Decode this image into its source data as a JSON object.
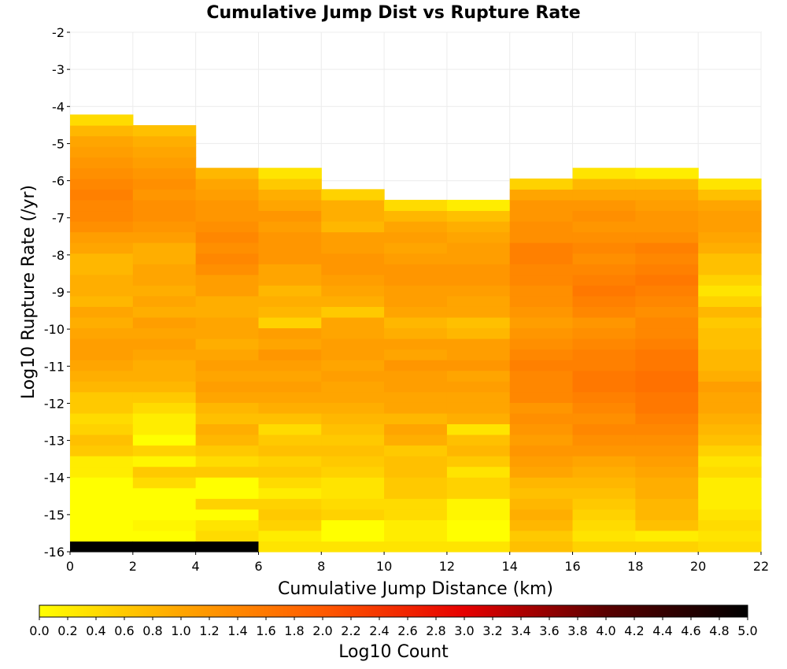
{
  "chart_data": {
    "type": "heatmap",
    "title": "Cumulative Jump Dist vs Rupture Rate",
    "xlabel": "Cumulative Jump Distance (km)",
    "ylabel": "Log10 Rupture Rate (/yr)",
    "xlim": [
      0,
      22
    ],
    "ylim": [
      -16,
      -2
    ],
    "x_ticks": [
      "0",
      "2",
      "4",
      "6",
      "8",
      "10",
      "12",
      "14",
      "16",
      "18",
      "20",
      "22"
    ],
    "y_ticks": [
      "-2",
      "-3",
      "-4",
      "-5",
      "-6",
      "-7",
      "-8",
      "-9",
      "-10",
      "-11",
      "-12",
      "-13",
      "-14",
      "-15",
      "-16"
    ],
    "x_bin_edges": [
      0,
      2,
      4,
      6,
      8,
      10,
      12,
      14,
      16,
      18,
      20,
      22
    ],
    "y_bin_width": 0.2874,
    "y_bin_origin": -16,
    "grid": true,
    "colorbar": {
      "label": "Log10 Count",
      "range": [
        0.0,
        5.0
      ],
      "colors": [
        "#ffff00",
        "#ffa500",
        "#ff5a00",
        "#e60000",
        "#5a0000",
        "#000000"
      ],
      "ticks": [
        "0.0",
        "0.2",
        "0.4",
        "0.6",
        "0.8",
        "1.0",
        "1.2",
        "1.4",
        "1.6",
        "1.8",
        "2.0",
        "2.2",
        "2.4",
        "2.6",
        "2.8",
        "3.0",
        "3.2",
        "3.4",
        "3.6",
        "3.8",
        "4.0",
        "4.2",
        "4.4",
        "4.6",
        "4.8",
        "5.0"
      ]
    },
    "columns": [
      {
        "x_range": [
          0,
          2
        ],
        "counts": [
          5.0,
          0.0,
          0.0,
          0.0,
          0.0,
          0.0,
          0.0,
          0.2,
          0.2,
          0.6,
          0.7,
          0.5,
          0.4,
          0.6,
          0.6,
          0.8,
          0.9,
          1.0,
          1.1,
          1.1,
          1.0,
          0.9,
          1.0,
          0.8,
          0.9,
          0.9,
          0.8,
          0.8,
          1.0,
          1.1,
          1.3,
          1.4,
          1.4,
          1.5,
          1.4,
          1.3,
          1.2,
          1.1,
          1.0,
          0.8,
          0.4
        ]
      },
      {
        "x_range": [
          2,
          4
        ],
        "counts": [
          5.0,
          0.0,
          0.1,
          0.0,
          0.0,
          0.0,
          0.4,
          0.6,
          0.1,
          0.5,
          0.0,
          0.2,
          0.2,
          0.4,
          0.6,
          0.8,
          0.9,
          0.9,
          1.0,
          1.1,
          1.0,
          1.1,
          0.9,
          1.0,
          0.9,
          1.0,
          1.0,
          0.9,
          0.9,
          1.1,
          1.2,
          1.3,
          1.3,
          1.2,
          1.3,
          1.2,
          1.1,
          1.0,
          0.9,
          0.7
        ]
      },
      {
        "x_range": [
          4,
          6
        ],
        "counts": [
          5.0,
          0.4,
          0.3,
          0.0,
          0.5,
          0.0,
          0.0,
          0.6,
          0.4,
          0.6,
          0.8,
          0.9,
          0.7,
          0.8,
          1.0,
          1.1,
          1.0,
          1.1,
          1.0,
          0.9,
          1.0,
          1.0,
          0.9,
          0.9,
          1.1,
          1.1,
          1.3,
          1.4,
          1.3,
          1.4,
          1.3,
          1.2,
          1.2,
          1.1,
          1.0,
          0.8
        ]
      },
      {
        "x_range": [
          6,
          8
        ],
        "counts": [
          0.3,
          0.2,
          0.5,
          0.6,
          0.5,
          0.2,
          0.4,
          0.6,
          0.5,
          0.7,
          0.6,
          0.4,
          0.7,
          0.9,
          1.0,
          1.1,
          1.0,
          1.1,
          1.2,
          1.0,
          1.1,
          0.5,
          0.8,
          0.9,
          0.8,
          1.0,
          1.0,
          1.2,
          1.2,
          1.2,
          1.1,
          1.2,
          1.0,
          0.9,
          0.6,
          0.3
        ]
      },
      {
        "x_range": [
          8,
          10
        ],
        "counts": [
          0.3,
          0.0,
          0.0,
          0.5,
          0.4,
          0.3,
          0.3,
          0.5,
          0.6,
          0.7,
          0.6,
          0.7,
          0.8,
          0.9,
          1.0,
          1.0,
          1.1,
          1.0,
          1.1,
          1.1,
          1.0,
          1.0,
          0.6,
          0.9,
          1.0,
          1.1,
          1.2,
          1.2,
          1.1,
          1.1,
          0.8,
          0.9,
          0.9,
          0.5
        ]
      },
      {
        "x_range": [
          10,
          12
        ],
        "counts": [
          0.3,
          0.2,
          0.2,
          0.4,
          0.4,
          0.6,
          0.6,
          0.7,
          0.7,
          0.6,
          0.9,
          1.0,
          0.8,
          1.0,
          1.0,
          1.1,
          1.1,
          1.2,
          1.0,
          1.1,
          0.9,
          0.8,
          1.0,
          1.1,
          1.1,
          1.2,
          1.2,
          1.1,
          1.0,
          1.1,
          1.0,
          0.8,
          0.4
        ]
      },
      {
        "x_range": [
          12,
          14
        ],
        "counts": [
          0.3,
          0.0,
          0.0,
          0.1,
          0.1,
          0.5,
          0.5,
          0.3,
          0.6,
          0.8,
          0.7,
          0.3,
          0.9,
          1.0,
          1.0,
          1.1,
          1.0,
          1.2,
          1.1,
          1.1,
          0.8,
          0.7,
          1.0,
          1.0,
          1.1,
          1.2,
          1.2,
          1.1,
          1.1,
          1.0,
          0.9,
          0.7,
          0.2
        ]
      },
      {
        "x_range": [
          14,
          16
        ],
        "counts": [
          0.7,
          0.6,
          0.8,
          0.9,
          0.8,
          0.7,
          0.8,
          1.0,
          1.1,
          1.2,
          1.1,
          1.2,
          1.3,
          1.2,
          1.4,
          1.4,
          1.4,
          1.5,
          1.4,
          1.3,
          1.2,
          1.1,
          1.2,
          1.3,
          1.3,
          1.4,
          1.4,
          1.5,
          1.5,
          1.3,
          1.3,
          1.2,
          1.2,
          1.0,
          0.5
        ]
      },
      {
        "x_range": [
          16,
          18
        ],
        "counts": [
          0.5,
          0.3,
          0.4,
          0.5,
          0.6,
          0.7,
          0.8,
          0.9,
          1.0,
          1.2,
          1.3,
          1.4,
          1.3,
          1.4,
          1.5,
          1.6,
          1.6,
          1.5,
          1.5,
          1.4,
          1.3,
          1.2,
          1.4,
          1.5,
          1.6,
          1.5,
          1.4,
          1.3,
          1.4,
          1.3,
          1.2,
          1.3,
          1.2,
          1.0,
          0.8,
          0.3
        ]
      },
      {
        "x_range": [
          18,
          20
        ],
        "counts": [
          0.5,
          0.2,
          0.7,
          0.8,
          0.8,
          0.9,
          0.9,
          1.0,
          1.1,
          1.2,
          1.3,
          1.4,
          1.5,
          1.6,
          1.6,
          1.7,
          1.7,
          1.6,
          1.6,
          1.5,
          1.4,
          1.4,
          1.3,
          1.4,
          1.5,
          1.6,
          1.5,
          1.4,
          1.5,
          1.3,
          1.2,
          1.2,
          1.1,
          1.0,
          0.8,
          0.2
        ]
      },
      {
        "x_range": [
          20,
          22
        ],
        "counts": [
          0.4,
          0.3,
          0.4,
          0.3,
          0.2,
          0.2,
          0.2,
          0.4,
          0.3,
          0.5,
          0.7,
          0.8,
          0.9,
          1.0,
          1.0,
          1.1,
          0.9,
          0.8,
          0.8,
          0.7,
          0.7,
          0.6,
          0.8,
          0.5,
          0.3,
          0.5,
          0.7,
          0.7,
          0.9,
          1.0,
          1.1,
          1.1,
          1.0,
          0.7,
          0.3
        ]
      }
    ]
  }
}
